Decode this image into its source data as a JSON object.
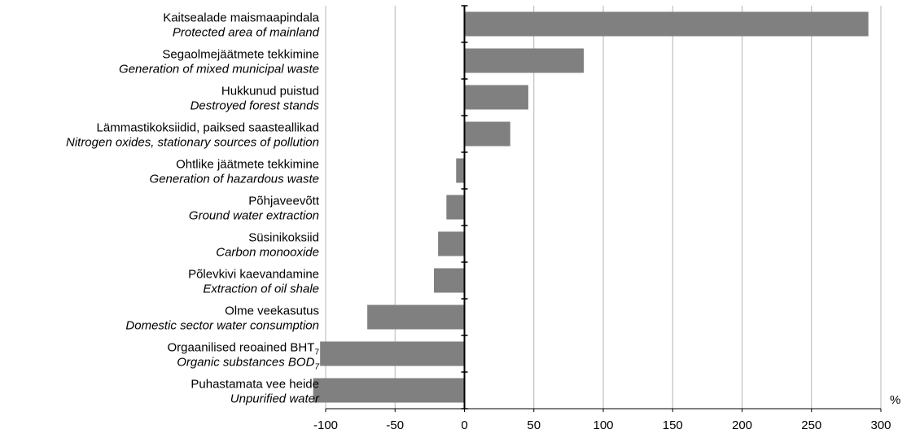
{
  "chart_data": {
    "type": "bar",
    "orientation": "horizontal",
    "unit": "%",
    "xlim": [
      -100,
      300
    ],
    "xticks": [
      "-100",
      "-50",
      "0",
      "50",
      "100",
      "150",
      "200",
      "250",
      "300"
    ],
    "grid": true,
    "bar_color": "#808080",
    "categories": [
      {
        "et": "Kaitsealade maismaapindala",
        "en": "Protected area of mainland",
        "value": 291
      },
      {
        "et": "Segaolmejäätmete tekkimine",
        "en": "Generation of mixed municipal waste",
        "value": 86
      },
      {
        "et": "Hukkunud puistud",
        "en": "Destroyed forest stands",
        "value": 46
      },
      {
        "et": "Lämmastikoksiidid, paiksed saasteallikad",
        "en": "Nitrogen oxides, stationary sources of pollution",
        "value": 33
      },
      {
        "et": "Ohtlike jäätmete tekkimine",
        "en": "Generation of hazardous waste",
        "value": -6
      },
      {
        "et": "Põhjaveevõtt",
        "en": "Ground  water extraction",
        "value": -13
      },
      {
        "et": "Süsinikoksiid",
        "en": "Carbon monooxide",
        "value": -19
      },
      {
        "et": "Põlevkivi kaevandamine",
        "en": "Extraction of oil shale",
        "value": -22
      },
      {
        "et": "Olme veekasutus",
        "en": "Domestic sector water consumption",
        "value": -70
      },
      {
        "et": "Orgaanilised reoained BHT",
        "et_sub": "7",
        "en": "Organic substances BOD",
        "en_sub": "7",
        "value": -104
      },
      {
        "et": "Puhastamata vee heide",
        "en": "Unpurified water",
        "value": -109
      }
    ]
  }
}
